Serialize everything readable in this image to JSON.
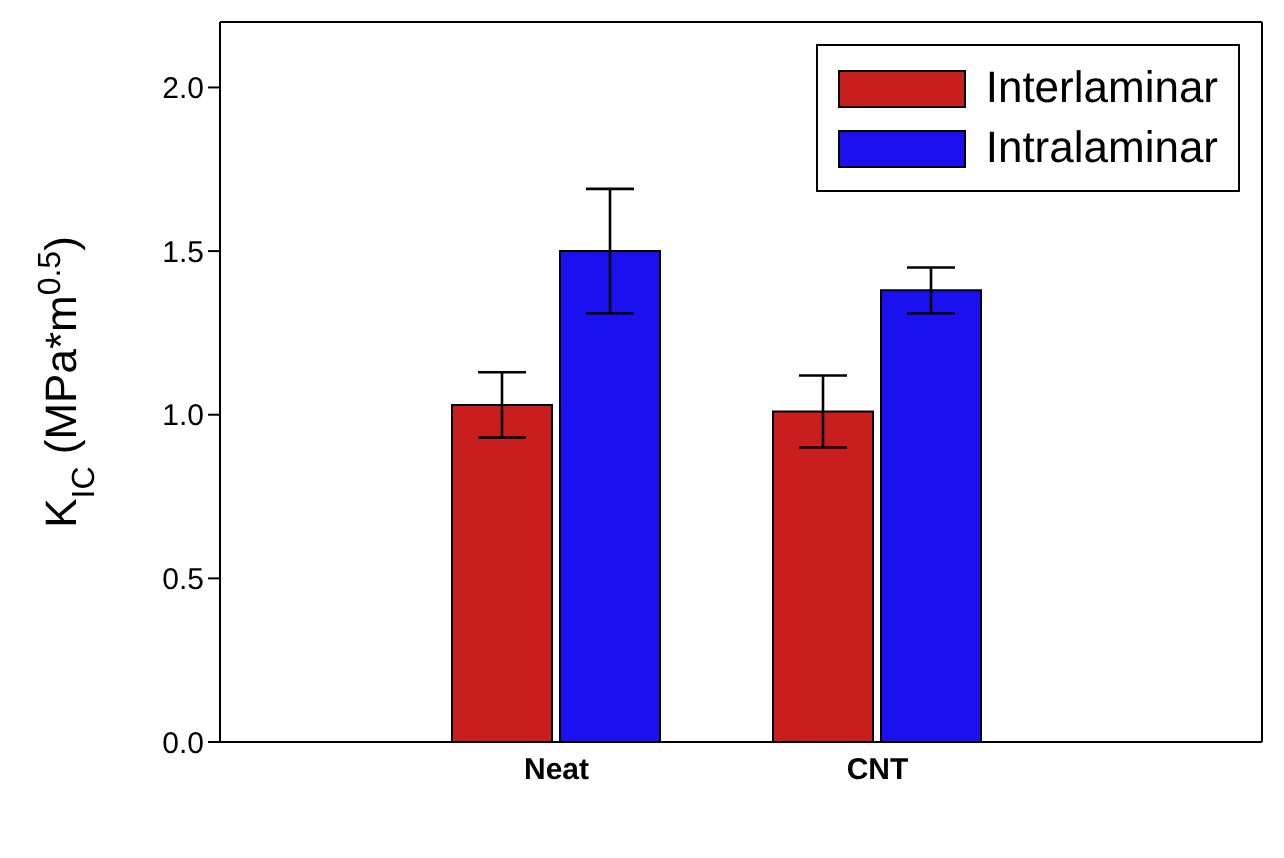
{
  "chart_data": {
    "type": "bar",
    "ylabel": "K$_{IC}$ (MPa*m$^{0.5}$)",
    "categories": [
      "Neat",
      "CNT"
    ],
    "series": [
      {
        "name": "Interlaminar",
        "color": "#c81e1e",
        "values": [
          1.03,
          1.01
        ],
        "errors": [
          0.1,
          0.11
        ]
      },
      {
        "name": "Intralaminar",
        "color": "#1a10f0",
        "values": [
          1.5,
          1.38
        ],
        "errors": [
          0.19,
          0.07
        ]
      }
    ],
    "ylim": [
      0,
      2.2
    ],
    "yticks": [
      {
        "value": 0,
        "label": "0.0"
      },
      {
        "value": 0.5,
        "label": "0.5"
      },
      {
        "value": 1,
        "label": "1.0"
      },
      {
        "value": 1.5,
        "label": "1.5"
      },
      {
        "value": 2,
        "label": "2.0"
      }
    ],
    "grid": false,
    "legend": "top right"
  }
}
